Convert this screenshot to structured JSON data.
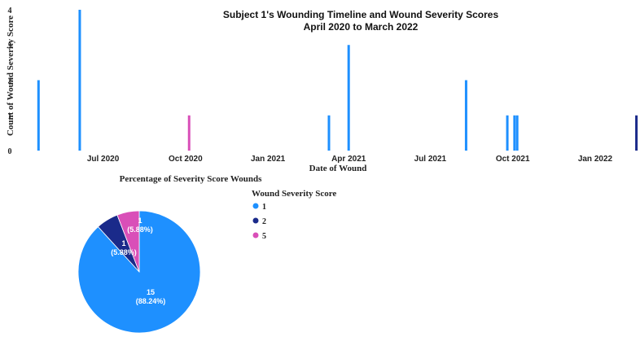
{
  "chart_data": [
    {
      "type": "bar",
      "title": "Subject 1's Wounding Timeline and Wound Severity Scores",
      "subtitle": "April 2020 to March 2022",
      "xlabel": "Date of Wound",
      "ylabel": "Count of Wound Severity Score",
      "x_ticks": [
        "Jul 2020",
        "Oct 2020",
        "Jan 2021",
        "Apr 2021",
        "Jul 2021",
        "Oct 2021",
        "Jan 2022"
      ],
      "y_ticks": [
        "0",
        "1",
        "2",
        "3",
        "4"
      ],
      "ylim": [
        0,
        4
      ],
      "xlim": [
        "2020-04-17",
        "2022-02-20"
      ],
      "grid": false,
      "bars": [
        {
          "date": "2020-04-20",
          "count": 2,
          "score": "1"
        },
        {
          "date": "2020-06-05",
          "count": 4,
          "score": "1"
        },
        {
          "date": "2020-10-05",
          "count": 1,
          "score": "5"
        },
        {
          "date": "2021-03-10",
          "count": 1,
          "score": "1"
        },
        {
          "date": "2021-04-01",
          "count": 3,
          "score": "1"
        },
        {
          "date": "2021-08-10",
          "count": 2,
          "score": "1"
        },
        {
          "date": "2021-09-25",
          "count": 1,
          "score": "1"
        },
        {
          "date": "2021-10-03",
          "count": 1,
          "score": "1"
        },
        {
          "date": "2021-10-06",
          "count": 1,
          "score": "1"
        },
        {
          "date": "2022-02-16",
          "count": 1,
          "score": "2"
        }
      ]
    },
    {
      "type": "pie",
      "title": "Percentage of Severity Score Wounds",
      "legend_title": "Wound Severity Score",
      "legend_position": "right",
      "slices": [
        {
          "label": "1",
          "value": 15,
          "percent": "88.24%",
          "color": "#1e90ff"
        },
        {
          "label": "2",
          "value": 1,
          "percent": "5.88%",
          "color": "#1a2a8a"
        },
        {
          "label": "5",
          "value": 1,
          "percent": "5.88%",
          "color": "#d94fb8"
        }
      ]
    }
  ]
}
